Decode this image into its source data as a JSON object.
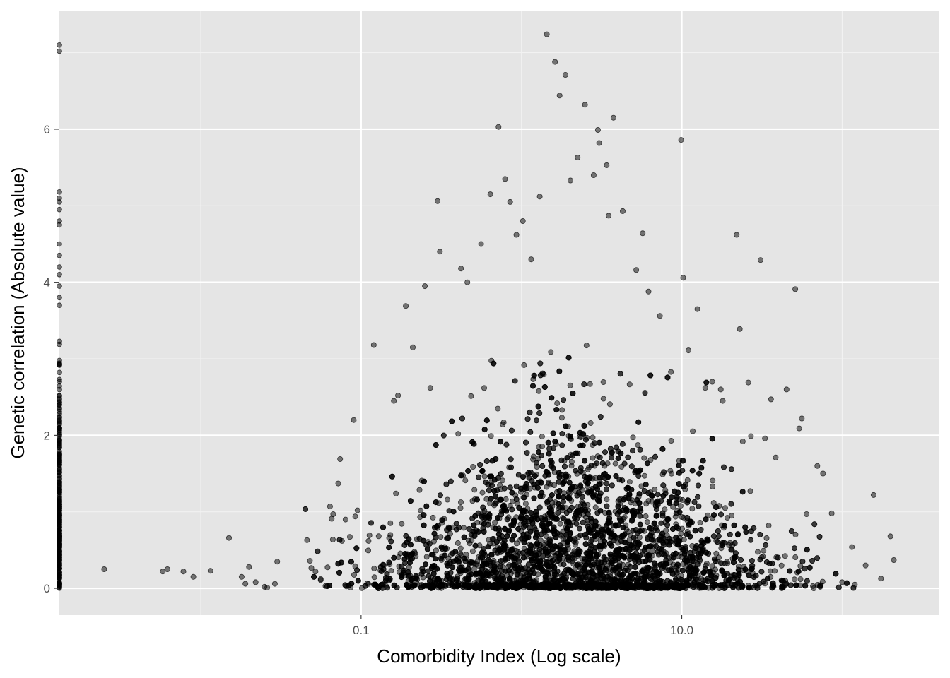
{
  "chart_data": {
    "type": "scatter",
    "title": "",
    "xlabel": "Comorbidity Index (Log scale)",
    "ylabel": "Genetic correlation (Absolute value)",
    "x_scale": "log10",
    "xlim": [
      0.0013,
      400
    ],
    "ylim": [
      -0.35,
      7.55
    ],
    "x_ticks": [
      0.1,
      10
    ],
    "x_tick_labels": [
      "0.1",
      "10.0"
    ],
    "x_minor_ticks": [
      0.01,
      1,
      100
    ],
    "y_ticks": [
      0,
      2,
      4,
      6
    ],
    "y_tick_labels": [
      "0",
      "2",
      "4",
      "6"
    ],
    "y_minor_ticks": [
      1,
      3,
      5,
      7
    ],
    "grid": true,
    "legend": "none",
    "point_color": "#000000",
    "point_alpha": 0.5,
    "series": [
      {
        "values": [
          [
            0.0025,
            0.25
          ],
          [
            0.0058,
            0.22
          ],
          [
            0.0062,
            0.25
          ],
          [
            0.0078,
            0.22
          ],
          [
            0.009,
            0.15
          ],
          [
            0.0115,
            0.23
          ],
          [
            0.015,
            0.66
          ],
          [
            0.018,
            0.15
          ],
          [
            0.019,
            0.06
          ],
          [
            0.02,
            0.28
          ],
          [
            0.022,
            0.08
          ],
          [
            0.025,
            0.02
          ],
          [
            0.026,
            0.01
          ],
          [
            0.029,
            0.06
          ],
          [
            0.03,
            0.35
          ],
          [
            0.046,
            0.63
          ],
          [
            0.048,
            0.36
          ],
          [
            0.052,
            0.22
          ],
          [
            0.056,
            0.11
          ],
          [
            0.06,
            0.03
          ],
          [
            0.064,
            1.07
          ],
          [
            0.067,
            0.97
          ],
          [
            0.072,
            1.37
          ],
          [
            0.074,
            1.69
          ],
          [
            0.076,
            0.62
          ],
          [
            0.08,
            0.9
          ],
          [
            0.09,
            2.2
          ],
          [
            0.092,
            0.94
          ],
          [
            0.095,
            1.02
          ],
          [
            0.12,
            3.18
          ],
          [
            0.16,
            2.45
          ],
          [
            0.17,
            2.52
          ],
          [
            0.19,
            3.69
          ],
          [
            0.21,
            3.15
          ],
          [
            0.25,
            3.95
          ],
          [
            0.27,
            2.62
          ],
          [
            0.3,
            5.06
          ],
          [
            0.31,
            4.4
          ],
          [
            0.42,
            4.18
          ],
          [
            0.46,
            4.0
          ],
          [
            0.56,
            4.5
          ],
          [
            0.64,
            5.15
          ],
          [
            0.72,
            6.03
          ],
          [
            0.79,
            5.35
          ],
          [
            0.85,
            5.05
          ],
          [
            0.93,
            4.62
          ],
          [
            1.02,
            4.8
          ],
          [
            1.15,
            4.3
          ],
          [
            1.3,
            5.12
          ],
          [
            1.44,
            7.24
          ],
          [
            1.62,
            6.88
          ],
          [
            1.73,
            6.44
          ],
          [
            1.88,
            6.71
          ],
          [
            2.02,
            5.33
          ],
          [
            2.24,
            5.63
          ],
          [
            2.49,
            6.32
          ],
          [
            2.82,
            5.4
          ],
          [
            3.0,
            5.99
          ],
          [
            3.05,
            5.82
          ],
          [
            3.4,
            5.53
          ],
          [
            3.5,
            4.87
          ],
          [
            3.75,
            6.15
          ],
          [
            4.28,
            4.93
          ],
          [
            5.2,
            4.16
          ],
          [
            5.7,
            4.64
          ],
          [
            6.2,
            3.88
          ],
          [
            7.3,
            3.56
          ],
          [
            9.9,
            5.86
          ],
          [
            10.2,
            4.06
          ],
          [
            11.0,
            3.11
          ],
          [
            12.5,
            3.65
          ],
          [
            14.0,
            2.62
          ],
          [
            17.5,
            2.6
          ],
          [
            22.0,
            4.62
          ],
          [
            23.0,
            3.39
          ],
          [
            26.0,
            2.69
          ],
          [
            31.0,
            4.29
          ],
          [
            33.0,
            1.96
          ],
          [
            36.0,
            2.47
          ],
          [
            38.5,
            1.71
          ],
          [
            45.0,
            2.6
          ],
          [
            54.0,
            2.09
          ],
          [
            56.0,
            2.22
          ],
          [
            70.0,
            1.6
          ],
          [
            76.0,
            1.5
          ],
          [
            60.0,
            0.97
          ],
          [
            86.0,
            0.98
          ],
          [
            115.0,
            0.54
          ],
          [
            157.0,
            1.22
          ],
          [
            200.0,
            0.68
          ],
          [
            210.0,
            0.37
          ],
          [
            140.0,
            0.3
          ],
          [
            120.0,
            0.05
          ],
          [
            73.0,
            0.02
          ],
          [
            55.0,
            0.12
          ],
          [
            51.0,
            3.91
          ],
          [
            27.0,
            1.99
          ],
          [
            24.0,
            1.92
          ],
          [
            18.0,
            2.45
          ],
          [
            15.5,
            2.7
          ]
        ]
      }
    ]
  }
}
